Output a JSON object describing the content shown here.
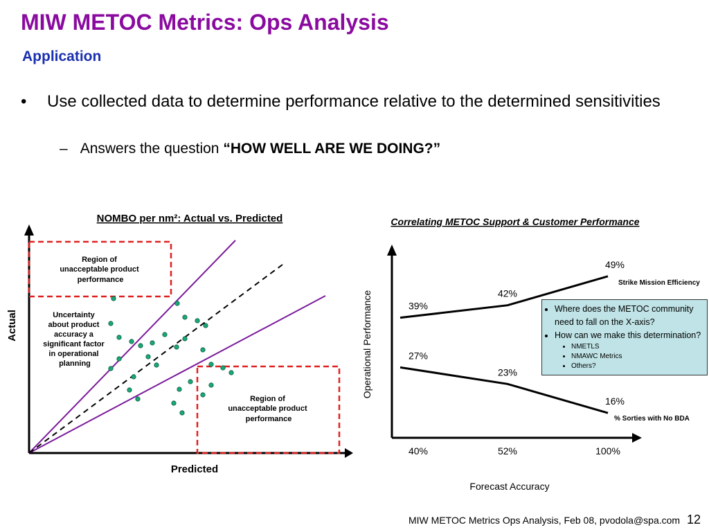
{
  "slide": {
    "title": "MIW METOC Metrics:  Ops Analysis",
    "subtitle": "Application",
    "bullet_main": "Use collected data to determine performance relative to the determined sensitivities",
    "bullet_sub_prefix": "Answers the question",
    "bullet_sub_emphasis": "“HOW WELL ARE WE DOING?”",
    "bullet_symbol": "•",
    "dash_symbol": "–"
  },
  "left_chart": {
    "title": "NOMBO per nm²: Actual vs. Predicted",
    "xlabel": "Predicted",
    "ylabel": "Actual",
    "region_top_label": [
      "Region of",
      "unacceptable product",
      "performance"
    ],
    "region_bottom_label": [
      "Region of",
      "unacceptable product",
      "performance"
    ],
    "uncertainty_label": [
      "Uncertainty",
      "about product",
      "accuracy a",
      "significant factor",
      "in operational",
      "planning"
    ],
    "colors": {
      "bound_lines": "#7a1a9a",
      "points": "#19a87a",
      "region_border": "#e02020"
    }
  },
  "chart_data": {
    "type": "line",
    "title": "Correlating METOC Support & Customer Performance",
    "xlabel": "Forecast Accuracy",
    "ylabel": "Operational Performance",
    "categories": [
      "40%",
      "52%",
      "100%"
    ],
    "series": [
      {
        "name": "Strike Mission Efficiency",
        "values": [
          39,
          42,
          49
        ],
        "labels": [
          "39%",
          "42%",
          "49%"
        ]
      },
      {
        "name": "% Sorties with No BDA",
        "values": [
          27,
          23,
          16
        ],
        "labels": [
          "27%",
          "23%",
          "16%"
        ]
      }
    ],
    "ylim": [
      10,
      55
    ],
    "grid": false,
    "legend": "none"
  },
  "note_box": {
    "items": [
      "Where does the METOC community need to fall on the X-axis?",
      "How can we make this determination?"
    ],
    "subitems": [
      "NMETLS",
      "NMAWC Metrics",
      "Others?"
    ]
  },
  "footer": {
    "text": "MIW METOC Metrics Ops Analysis, Feb 08, pvodola@spa.com",
    "page": "12"
  }
}
